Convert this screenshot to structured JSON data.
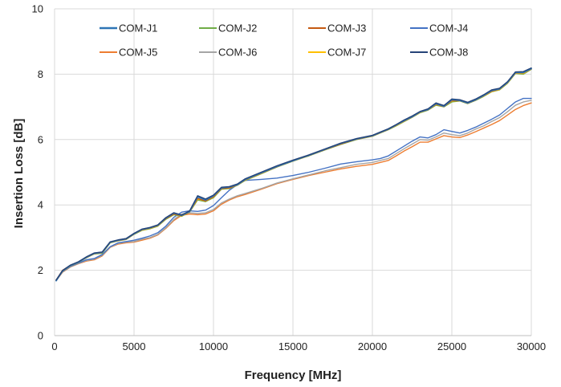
{
  "chart_data": {
    "type": "line",
    "title": "",
    "xlabel": "Frequency [MHz]",
    "ylabel": "Insertion Loss [dB]",
    "xlim": [
      0,
      30000
    ],
    "ylim": [
      0,
      10
    ],
    "x_ticks": [
      "0",
      "5000",
      "10000",
      "15000",
      "20000",
      "25000",
      "30000"
    ],
    "y_ticks": [
      "0",
      "2",
      "4",
      "6",
      "8",
      "10"
    ],
    "grid": "vertical and horizontal",
    "legend_placement": "top, inside plot, 4 columns",
    "x": [
      100,
      500,
      1000,
      1500,
      2000,
      2500,
      3000,
      3500,
      4000,
      4500,
      5000,
      5500,
      6000,
      6500,
      7000,
      7500,
      8000,
      8500,
      9000,
      9500,
      10000,
      10500,
      11000,
      11500,
      12000,
      13000,
      14000,
      15000,
      16000,
      17000,
      18000,
      19000,
      20000,
      20500,
      21000,
      21500,
      22000,
      22500,
      23000,
      23500,
      24000,
      24500,
      25000,
      25500,
      26000,
      26500,
      27000,
      27500,
      28000,
      28500,
      29000,
      29500,
      30000
    ],
    "series": [
      {
        "name": "COM-J1",
        "color": "#2e75b6",
        "values": [
          1.68,
          1.98,
          2.15,
          2.25,
          2.4,
          2.52,
          2.55,
          2.86,
          2.92,
          2.96,
          3.12,
          3.25,
          3.3,
          3.38,
          3.6,
          3.75,
          3.68,
          3.8,
          4.25,
          4.15,
          4.28,
          4.52,
          4.55,
          4.62,
          4.78,
          4.98,
          5.18,
          5.35,
          5.52,
          5.7,
          5.88,
          6.02,
          6.12,
          6.22,
          6.32,
          6.45,
          6.58,
          6.7,
          6.85,
          6.92,
          7.1,
          7.02,
          7.22,
          7.2,
          7.12,
          7.22,
          7.35,
          7.5,
          7.55,
          7.75,
          8.05,
          8.05,
          8.17
        ]
      },
      {
        "name": "COM-J2",
        "color": "#70ad47",
        "values": [
          1.7,
          1.98,
          2.14,
          2.24,
          2.38,
          2.5,
          2.52,
          2.84,
          2.9,
          2.94,
          3.1,
          3.22,
          3.27,
          3.35,
          3.56,
          3.7,
          3.65,
          3.78,
          4.15,
          4.1,
          4.22,
          4.48,
          4.5,
          4.6,
          4.75,
          4.95,
          5.16,
          5.34,
          5.5,
          5.68,
          5.85,
          6.0,
          6.1,
          6.2,
          6.3,
          6.42,
          6.55,
          6.68,
          6.82,
          6.9,
          7.05,
          7.0,
          7.15,
          7.18,
          7.1,
          7.2,
          7.32,
          7.46,
          7.52,
          7.72,
          8.02,
          8.0,
          8.15
        ]
      },
      {
        "name": "COM-J3",
        "color": "#c55a11",
        "values": [
          1.7,
          2.0,
          2.15,
          2.25,
          2.39,
          2.51,
          2.54,
          2.85,
          2.91,
          2.95,
          3.11,
          3.24,
          3.29,
          3.37,
          3.58,
          3.72,
          3.67,
          3.79,
          4.2,
          4.12,
          4.25,
          4.5,
          4.52,
          4.61,
          4.77,
          4.97,
          5.17,
          5.35,
          5.51,
          5.69,
          5.86,
          6.01,
          6.11,
          6.21,
          6.31,
          6.44,
          6.57,
          6.69,
          6.84,
          6.91,
          7.08,
          7.01,
          7.19,
          7.19,
          7.11,
          7.21,
          7.34,
          7.48,
          7.54,
          7.74,
          8.04,
          8.04,
          8.16
        ]
      },
      {
        "name": "COM-J4",
        "color": "#4472c4",
        "values": [
          1.7,
          1.96,
          2.12,
          2.22,
          2.32,
          2.36,
          2.48,
          2.72,
          2.84,
          2.88,
          2.92,
          2.98,
          3.05,
          3.15,
          3.35,
          3.62,
          3.78,
          3.82,
          3.8,
          3.84,
          3.98,
          4.22,
          4.45,
          4.62,
          4.75,
          4.78,
          4.82,
          4.9,
          5.0,
          5.12,
          5.25,
          5.32,
          5.38,
          5.42,
          5.5,
          5.65,
          5.8,
          5.95,
          6.08,
          6.05,
          6.15,
          6.3,
          6.25,
          6.2,
          6.28,
          6.38,
          6.5,
          6.62,
          6.75,
          6.95,
          7.15,
          7.26,
          7.26
        ]
      },
      {
        "name": "COM-J5",
        "color": "#ed7d31",
        "values": [
          1.68,
          1.94,
          2.1,
          2.2,
          2.28,
          2.32,
          2.44,
          2.7,
          2.8,
          2.84,
          2.86,
          2.92,
          2.98,
          3.08,
          3.28,
          3.52,
          3.68,
          3.72,
          3.7,
          3.72,
          3.82,
          4.02,
          4.15,
          4.25,
          4.32,
          4.48,
          4.65,
          4.78,
          4.9,
          5.0,
          5.1,
          5.18,
          5.24,
          5.3,
          5.36,
          5.5,
          5.65,
          5.78,
          5.92,
          5.92,
          6.02,
          6.12,
          6.08,
          6.06,
          6.14,
          6.24,
          6.35,
          6.46,
          6.58,
          6.75,
          6.92,
          7.04,
          7.12
        ]
      },
      {
        "name": "COM-J6",
        "color": "#a5a5a5",
        "values": [
          1.69,
          1.95,
          2.11,
          2.21,
          2.3,
          2.34,
          2.46,
          2.71,
          2.82,
          2.86,
          2.88,
          2.95,
          3.0,
          3.1,
          3.3,
          3.55,
          3.72,
          3.76,
          3.74,
          3.76,
          3.86,
          4.06,
          4.18,
          4.28,
          4.35,
          4.5,
          4.67,
          4.8,
          4.92,
          5.04,
          5.14,
          5.24,
          5.3,
          5.36,
          5.42,
          5.57,
          5.72,
          5.86,
          6.0,
          5.98,
          6.08,
          6.2,
          6.15,
          6.12,
          6.2,
          6.32,
          6.42,
          6.55,
          6.67,
          6.85,
          7.05,
          7.15,
          7.2
        ]
      },
      {
        "name": "COM-J7",
        "color": "#ffc000",
        "values": [
          1.69,
          1.97,
          2.14,
          2.24,
          2.39,
          2.51,
          2.54,
          2.85,
          2.91,
          2.95,
          3.11,
          3.23,
          3.28,
          3.36,
          3.58,
          3.72,
          3.66,
          3.79,
          4.18,
          4.12,
          4.24,
          4.5,
          4.52,
          4.61,
          4.76,
          4.96,
          5.17,
          5.34,
          5.51,
          5.69,
          5.86,
          6.01,
          6.11,
          6.21,
          6.31,
          6.43,
          6.56,
          6.69,
          6.83,
          6.91,
          7.07,
          7.01,
          7.18,
          7.19,
          7.11,
          7.21,
          7.33,
          7.47,
          7.53,
          7.73,
          8.03,
          8.02,
          8.16
        ]
      },
      {
        "name": "COM-J8",
        "color": "#264478",
        "values": [
          1.7,
          1.99,
          2.16,
          2.26,
          2.41,
          2.53,
          2.56,
          2.87,
          2.93,
          2.97,
          3.13,
          3.26,
          3.31,
          3.39,
          3.61,
          3.76,
          3.69,
          3.82,
          4.28,
          4.18,
          4.3,
          4.54,
          4.56,
          4.64,
          4.8,
          5.0,
          5.2,
          5.37,
          5.53,
          5.71,
          5.89,
          6.03,
          6.13,
          6.23,
          6.33,
          6.46,
          6.6,
          6.72,
          6.86,
          6.94,
          7.12,
          7.04,
          7.24,
          7.22,
          7.14,
          7.24,
          7.37,
          7.52,
          7.57,
          7.77,
          8.07,
          8.08,
          8.19
        ]
      }
    ]
  }
}
